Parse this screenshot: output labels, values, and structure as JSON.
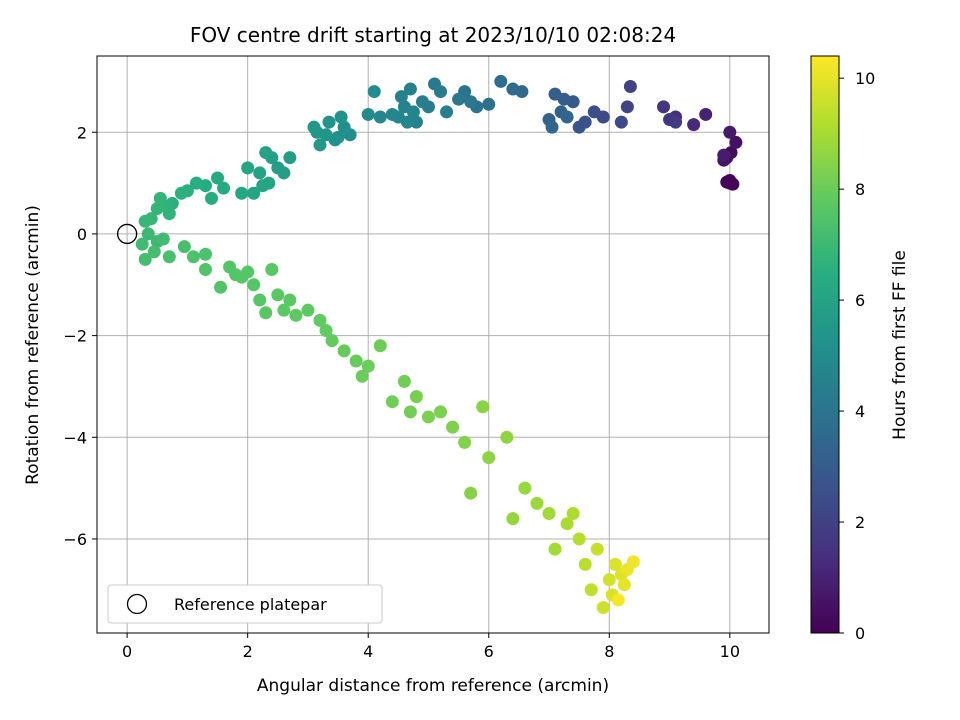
{
  "chart_data": {
    "type": "scatter",
    "title": "FOV centre drift starting at 2023/10/10 02:08:24",
    "xlabel": "Angular distance from reference (arcmin)",
    "ylabel": "Rotation from reference (arcmin)",
    "xlim": [
      -0.5,
      10.65
    ],
    "ylim": [
      -7.85,
      3.5
    ],
    "xticks": [
      0,
      2,
      4,
      6,
      8,
      10
    ],
    "yticks": [
      -6,
      -4,
      -2,
      0,
      2
    ],
    "grid": true,
    "legend": {
      "placement": "lower-left",
      "entries": [
        "Reference platepar"
      ]
    },
    "colorbar": {
      "label": "Hours from first FF file",
      "range": [
        0,
        10.4
      ],
      "ticks": [
        0,
        2,
        4,
        6,
        8,
        10
      ],
      "colormap": "viridis"
    },
    "reference_point": {
      "x": 0,
      "y": 0,
      "label": "Reference platepar"
    },
    "series": [
      {
        "points": [
          [
            10.0,
            1.0,
            0.05
          ],
          [
            10.05,
            0.98,
            0.1
          ],
          [
            10.0,
            1.05,
            0.12
          ],
          [
            9.95,
            1.02,
            0.15
          ],
          [
            10.02,
            1.6,
            0.3
          ],
          [
            9.95,
            1.5,
            0.4
          ],
          [
            10.1,
            1.8,
            0.5
          ],
          [
            9.9,
            1.45,
            0.6
          ],
          [
            10.0,
            2.0,
            0.7
          ],
          [
            9.9,
            1.55,
            0.8
          ],
          [
            9.6,
            2.35,
            1.0
          ],
          [
            9.4,
            2.15,
            1.2
          ],
          [
            9.1,
            2.3,
            1.4
          ],
          [
            8.9,
            2.5,
            1.6
          ],
          [
            9.0,
            2.25,
            1.7
          ],
          [
            9.1,
            2.2,
            1.8
          ],
          [
            8.35,
            2.9,
            2.0
          ],
          [
            8.3,
            2.5,
            2.1
          ],
          [
            8.2,
            2.2,
            2.3
          ],
          [
            7.9,
            2.3,
            2.4
          ],
          [
            7.75,
            2.4,
            2.5
          ],
          [
            7.6,
            2.2,
            2.6
          ],
          [
            7.5,
            2.1,
            2.7
          ],
          [
            7.4,
            2.6,
            2.9
          ],
          [
            7.25,
            2.65,
            3.0
          ],
          [
            7.1,
            2.75,
            3.1
          ],
          [
            7.2,
            2.4,
            3.2
          ],
          [
            7.0,
            2.25,
            3.3
          ],
          [
            7.05,
            2.1,
            3.4
          ],
          [
            7.3,
            2.3,
            3.4
          ],
          [
            6.55,
            2.8,
            3.5
          ],
          [
            6.4,
            2.85,
            3.6
          ],
          [
            6.2,
            3.0,
            3.7
          ],
          [
            6.0,
            2.55,
            3.8
          ],
          [
            5.8,
            2.5,
            3.9
          ],
          [
            5.6,
            2.8,
            4.0
          ],
          [
            5.7,
            2.6,
            4.1
          ],
          [
            5.5,
            2.65,
            4.1
          ],
          [
            5.1,
            2.95,
            4.2
          ],
          [
            5.2,
            2.8,
            4.3
          ],
          [
            5.0,
            2.5,
            4.3
          ],
          [
            5.3,
            2.4,
            4.4
          ],
          [
            4.9,
            2.6,
            4.4
          ],
          [
            4.8,
            2.2,
            4.5
          ],
          [
            4.7,
            2.85,
            4.5
          ],
          [
            4.6,
            2.5,
            4.6
          ],
          [
            4.55,
            2.7,
            4.6
          ],
          [
            4.5,
            2.3,
            4.7
          ],
          [
            4.65,
            2.2,
            4.7
          ],
          [
            4.75,
            2.4,
            4.7
          ],
          [
            4.4,
            2.35,
            4.8
          ],
          [
            4.2,
            2.3,
            4.8
          ],
          [
            4.0,
            2.35,
            4.9
          ],
          [
            4.1,
            2.8,
            5.0
          ],
          [
            3.7,
            1.95,
            5.1
          ],
          [
            3.6,
            2.1,
            5.1
          ],
          [
            3.5,
            1.9,
            5.2
          ],
          [
            3.45,
            1.85,
            5.2
          ],
          [
            3.35,
            2.2,
            5.3
          ],
          [
            3.55,
            2.3,
            5.3
          ],
          [
            3.3,
            1.95,
            5.4
          ],
          [
            3.15,
            2.0,
            5.4
          ],
          [
            3.2,
            1.75,
            5.5
          ],
          [
            3.1,
            2.1,
            5.5
          ],
          [
            2.7,
            1.5,
            5.7
          ],
          [
            2.5,
            1.3,
            5.7
          ],
          [
            2.4,
            1.5,
            5.8
          ],
          [
            2.6,
            1.2,
            5.8
          ],
          [
            2.3,
            1.6,
            5.9
          ],
          [
            2.2,
            1.2,
            5.9
          ],
          [
            2.25,
            0.95,
            6.0
          ],
          [
            2.1,
            0.8,
            6.0
          ],
          [
            2.35,
            1.0,
            6.1
          ],
          [
            2.0,
            1.3,
            6.1
          ],
          [
            1.9,
            0.8,
            6.2
          ],
          [
            1.6,
            0.9,
            6.3
          ],
          [
            1.5,
            1.1,
            6.3
          ],
          [
            1.4,
            0.7,
            6.4
          ],
          [
            1.3,
            0.95,
            6.4
          ],
          [
            1.15,
            1.0,
            6.5
          ],
          [
            1.0,
            0.85,
            6.5
          ],
          [
            0.9,
            0.8,
            6.6
          ],
          [
            0.75,
            0.6,
            6.6
          ],
          [
            0.7,
            0.4,
            6.7
          ],
          [
            0.65,
            0.55,
            6.7
          ],
          [
            0.55,
            0.7,
            6.8
          ],
          [
            0.5,
            0.5,
            6.8
          ],
          [
            0.4,
            0.3,
            6.9
          ],
          [
            0.3,
            0.25,
            6.9
          ],
          [
            0.35,
            0.0,
            7.0
          ],
          [
            0.5,
            -0.15,
            7.0
          ],
          [
            0.6,
            -0.1,
            7.1
          ],
          [
            0.25,
            -0.2,
            7.1
          ],
          [
            0.3,
            -0.5,
            7.2
          ],
          [
            0.45,
            -0.35,
            7.2
          ],
          [
            0.7,
            -0.45,
            7.3
          ],
          [
            0.95,
            -0.25,
            7.3
          ],
          [
            1.1,
            -0.45,
            7.4
          ],
          [
            1.3,
            -0.4,
            7.4
          ],
          [
            1.3,
            -0.7,
            7.5
          ],
          [
            1.55,
            -1.05,
            7.5
          ],
          [
            1.7,
            -0.65,
            7.55
          ],
          [
            1.8,
            -0.8,
            7.55
          ],
          [
            1.9,
            -0.85,
            7.6
          ],
          [
            2.0,
            -0.75,
            7.6
          ],
          [
            2.1,
            -1.0,
            7.6
          ],
          [
            2.2,
            -1.3,
            7.65
          ],
          [
            2.3,
            -1.55,
            7.65
          ],
          [
            2.4,
            -0.7,
            7.7
          ],
          [
            2.5,
            -1.2,
            7.7
          ],
          [
            2.6,
            -1.5,
            7.75
          ],
          [
            2.7,
            -1.3,
            7.75
          ],
          [
            2.8,
            -1.6,
            7.8
          ],
          [
            3.0,
            -1.5,
            7.8
          ],
          [
            3.2,
            -1.7,
            7.85
          ],
          [
            3.3,
            -1.9,
            7.85
          ],
          [
            3.4,
            -2.1,
            7.9
          ],
          [
            3.6,
            -2.3,
            7.9
          ],
          [
            3.8,
            -2.5,
            7.95
          ],
          [
            3.9,
            -2.8,
            8.0
          ],
          [
            4.0,
            -2.6,
            8.0
          ],
          [
            4.2,
            -2.2,
            8.05
          ],
          [
            4.4,
            -3.3,
            8.1
          ],
          [
            4.6,
            -2.9,
            8.1
          ],
          [
            4.7,
            -3.5,
            8.15
          ],
          [
            4.8,
            -3.2,
            8.2
          ],
          [
            5.0,
            -3.6,
            8.25
          ],
          [
            5.2,
            -3.5,
            8.3
          ],
          [
            5.4,
            -3.8,
            8.35
          ],
          [
            5.6,
            -4.1,
            8.4
          ],
          [
            5.7,
            -5.1,
            8.45
          ],
          [
            5.9,
            -3.4,
            8.5
          ],
          [
            6.0,
            -4.4,
            8.55
          ],
          [
            6.3,
            -4.0,
            8.6
          ],
          [
            6.4,
            -5.6,
            8.7
          ],
          [
            6.6,
            -5.0,
            8.75
          ],
          [
            6.8,
            -5.3,
            8.8
          ],
          [
            7.0,
            -5.5,
            8.9
          ],
          [
            7.1,
            -6.2,
            8.95
          ],
          [
            7.3,
            -5.7,
            9.05
          ],
          [
            7.4,
            -5.5,
            9.1
          ],
          [
            7.5,
            -6.0,
            9.2
          ],
          [
            7.6,
            -6.5,
            9.3
          ],
          [
            7.7,
            -7.0,
            9.4
          ],
          [
            7.8,
            -6.2,
            9.5
          ],
          [
            7.9,
            -7.35,
            9.6
          ],
          [
            8.0,
            -6.8,
            9.7
          ],
          [
            8.05,
            -7.1,
            9.8
          ],
          [
            8.1,
            -6.5,
            9.85
          ],
          [
            8.2,
            -6.7,
            9.9
          ],
          [
            8.25,
            -6.9,
            10.0
          ],
          [
            8.3,
            -6.6,
            10.1
          ],
          [
            8.4,
            -6.45,
            10.2
          ],
          [
            8.15,
            -7.2,
            10.3
          ]
        ]
      }
    ]
  }
}
